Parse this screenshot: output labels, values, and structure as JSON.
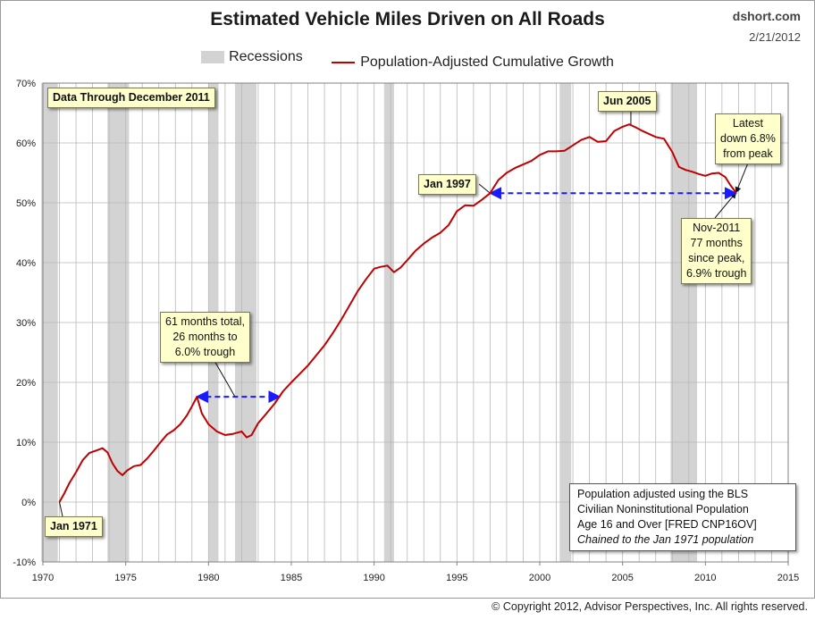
{
  "header": {
    "title": "Estimated Vehicle Miles Driven on All Roads",
    "brand": "dshort.com",
    "date": "2/21/2012"
  },
  "legend": {
    "recessions": "Recessions",
    "series": "Population-Adjusted Cumulative Growth"
  },
  "colors": {
    "series": "#c00000",
    "recession": "#d3d3d3",
    "arrow": "#1a1aff",
    "callout_bg": "#ffffcc"
  },
  "callouts": {
    "data_through": "Data Through December 2011",
    "jan1971": "Jan 1971",
    "jan1997": "Jan 1997",
    "jun2005": "Jun 2005",
    "latest": [
      "Latest",
      "down 6.8%",
      "from peak"
    ],
    "nov2011": [
      "Nov-2011",
      "77 months",
      "since peak,",
      "6.9% trough"
    ],
    "trough_1979": [
      "61 months total,",
      "26 months to",
      "6.0% trough"
    ]
  },
  "note": {
    "lines": [
      "Population adjusted using the BLS",
      "Civilian Noninstitutional Population",
      "Age 16 and Over  [FRED CNP16OV]"
    ],
    "italic": "Chained to the Jan 1971 population"
  },
  "copyright": "© Copyright 2012, Advisor Perspectives, Inc. All rights reserved.",
  "chart_data": {
    "type": "line",
    "title": "Estimated Vehicle Miles Driven on All Roads",
    "xlabel": "",
    "ylabel": "",
    "xlim": [
      1970,
      2015
    ],
    "ylim": [
      -10,
      70
    ],
    "x_ticks": [
      "1970",
      "1975",
      "1980",
      "1985",
      "1990",
      "1995",
      "2000",
      "2005",
      "2010",
      "2015"
    ],
    "y_ticks": [
      "-10%",
      "0%",
      "10%",
      "20%",
      "30%",
      "40%",
      "50%",
      "60%",
      "70%"
    ],
    "grid": true,
    "recessions": [
      [
        1969.9,
        1970.9
      ],
      [
        1973.9,
        1975.2
      ],
      [
        1980.0,
        1980.6
      ],
      [
        1981.6,
        1982.9
      ],
      [
        1990.6,
        1991.2
      ],
      [
        2001.2,
        2001.9
      ],
      [
        2007.9,
        2009.5
      ]
    ],
    "series": [
      {
        "name": "Population-Adjusted Cumulative Growth",
        "x": [
          1971.0,
          1971.3,
          1971.6,
          1972.0,
          1972.4,
          1972.8,
          1973.2,
          1973.6,
          1973.9,
          1974.2,
          1974.5,
          1974.8,
          1975.1,
          1975.5,
          1975.9,
          1976.3,
          1976.7,
          1977.1,
          1977.5,
          1977.9,
          1978.3,
          1978.7,
          1979.0,
          1979.3,
          1979.6,
          1980.0,
          1980.5,
          1981.0,
          1981.5,
          1982.0,
          1982.3,
          1982.6,
          1983.0,
          1983.5,
          1984.0,
          1984.5,
          1985.0,
          1985.5,
          1986.0,
          1986.5,
          1987.0,
          1987.5,
          1988.0,
          1988.5,
          1989.0,
          1989.5,
          1990.0,
          1990.4,
          1990.8,
          1991.2,
          1991.6,
          1992.0,
          1992.5,
          1993.0,
          1993.5,
          1994.0,
          1994.5,
          1995.0,
          1995.5,
          1996.0,
          1996.5,
          1997.0,
          1997.5,
          1998.0,
          1998.5,
          1999.0,
          1999.5,
          2000.0,
          2000.5,
          2001.0,
          2001.5,
          2002.0,
          2002.5,
          2003.0,
          2003.5,
          2004.0,
          2004.5,
          2005.0,
          2005.4,
          2005.8,
          2006.2,
          2006.6,
          2007.0,
          2007.5,
          2008.0,
          2008.4,
          2008.8,
          2009.2,
          2009.6,
          2010.0,
          2010.4,
          2010.8,
          2011.2,
          2011.5,
          2011.85
        ],
        "values": [
          0.0,
          1.5,
          3.2,
          5.0,
          7.0,
          8.2,
          8.6,
          9.0,
          8.3,
          6.5,
          5.2,
          4.5,
          5.3,
          6.0,
          6.2,
          7.3,
          8.6,
          10.0,
          11.3,
          12.0,
          13.0,
          14.5,
          16.0,
          17.6,
          14.8,
          13.0,
          11.8,
          11.2,
          11.4,
          11.8,
          10.8,
          11.2,
          13.2,
          14.8,
          16.5,
          18.5,
          20.0,
          21.4,
          22.8,
          24.5,
          26.2,
          28.2,
          30.4,
          32.8,
          35.2,
          37.2,
          39.0,
          39.3,
          39.5,
          38.4,
          39.2,
          40.4,
          42.0,
          43.2,
          44.2,
          45.0,
          46.3,
          48.6,
          49.6,
          49.5,
          50.5,
          51.6,
          53.8,
          55.0,
          55.8,
          56.4,
          57.0,
          58.0,
          58.6,
          58.6,
          58.7,
          59.6,
          60.5,
          61.0,
          60.2,
          60.3,
          62.0,
          62.7,
          63.1,
          62.6,
          62.0,
          61.5,
          61.0,
          60.7,
          58.5,
          56.0,
          55.5,
          55.2,
          54.8,
          54.5,
          54.9,
          55.0,
          54.3,
          53.0,
          51.7
        ]
      }
    ],
    "annotations": [
      {
        "text": "Data Through December 2011"
      },
      {
        "text": "Jan 1971",
        "x": 1971.0,
        "y": 0.0
      },
      {
        "text": "Jan 1997",
        "x": 1997.0,
        "y": 51.6
      },
      {
        "text": "Jun 2005",
        "x": 2005.5,
        "y": 63.1
      },
      {
        "text": "Latest down 6.8% from peak",
        "x": 2011.85,
        "y": 51.7
      },
      {
        "text": "Nov-2011 77 months since peak, 6.9% trough",
        "x": 2011.85,
        "y": 51.7
      },
      {
        "text": "61 months total, 26 months to 6.0% trough",
        "x": 1981.6,
        "y": 17.6
      }
    ],
    "spans": [
      {
        "from": 1979.3,
        "to": 1984.3,
        "y": 17.6
      },
      {
        "from": 1997.0,
        "to": 2011.85,
        "y": 51.6
      }
    ]
  }
}
